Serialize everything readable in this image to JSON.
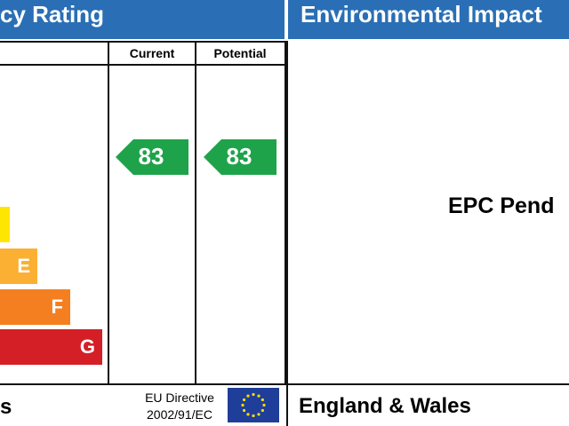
{
  "header": {
    "left_title": "cy Rating",
    "right_title": "Environmental Impact"
  },
  "columns": {
    "current": "Current",
    "potential": "Potential"
  },
  "bands": [
    "E",
    "F",
    "G"
  ],
  "ratings": {
    "current": "83",
    "potential": "83"
  },
  "right_panel": {
    "status": "EPC Pend"
  },
  "footer": {
    "left": "s",
    "directive_line1": "EU Directive",
    "directive_line2": "2002/91/EC",
    "region": "England & Wales"
  }
}
